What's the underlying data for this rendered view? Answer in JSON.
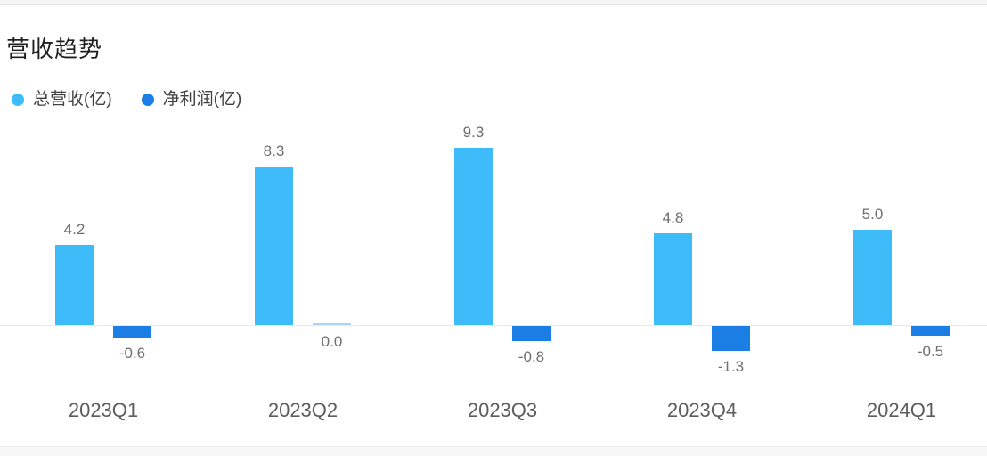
{
  "header": {
    "title": "营收趋势"
  },
  "colors": {
    "revenue": "#3EBCFA",
    "profit": "#1B7EE5",
    "axis_line": "#e9e9e9",
    "value_label_text": "#6f6f6f",
    "category_label_text": "#5d5d5d"
  },
  "chart_data": {
    "type": "bar",
    "title": "营收趋势",
    "categories": [
      "2023Q1",
      "2023Q2",
      "2023Q3",
      "2023Q4",
      "2024Q1"
    ],
    "series": [
      {
        "name": "总营收(亿)",
        "color": "#3EBCFA",
        "values": [
          4.2,
          8.3,
          9.3,
          4.8,
          5.0
        ],
        "labels": [
          "4.2",
          "8.3",
          "9.3",
          "4.8",
          "5.0"
        ]
      },
      {
        "name": "净利润(亿)",
        "color": "#1B7EE5",
        "values": [
          -0.6,
          0.0,
          -0.8,
          -1.3,
          -0.5
        ],
        "labels": [
          "-0.6",
          "0.0",
          "-0.8",
          "-1.3",
          "-0.5"
        ]
      }
    ],
    "xlabel": "",
    "ylabel": "",
    "ylim": [
      -1.5,
      10
    ],
    "grid": false,
    "legend_position": "top-left",
    "value_labels_shown": true
  }
}
